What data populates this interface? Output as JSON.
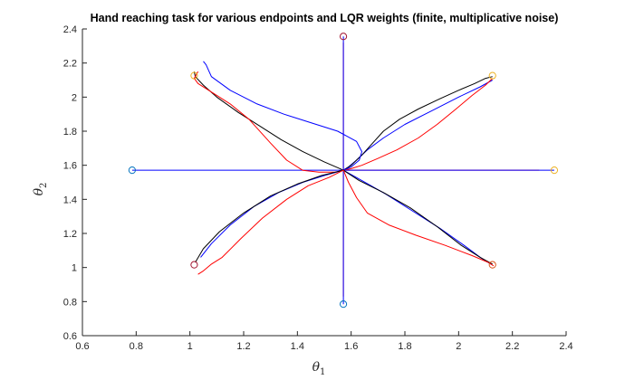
{
  "chart_data": {
    "type": "line",
    "title": "Hand reaching task for various endpoints and LQR weights (finite, multiplicative noise)",
    "xlabel": "θ1",
    "ylabel": "θ2",
    "xlabel_main": "θ",
    "xlabel_sub": "1",
    "ylabel_main": "θ",
    "ylabel_sub": "2",
    "xlim": [
      0.6,
      2.4
    ],
    "ylim": [
      0.6,
      2.4
    ],
    "x_ticks": [
      "0.6",
      "0.8",
      "1",
      "1.2",
      "1.4",
      "1.6",
      "1.8",
      "2",
      "2.2",
      "2.4"
    ],
    "y_ticks": [
      "0.6",
      "0.8",
      "1",
      "1.2",
      "1.4",
      "1.6",
      "1.8",
      "2",
      "2.2",
      "2.4"
    ],
    "grid": false,
    "legend": "none",
    "colors": {
      "blue": "#0000ff",
      "black": "#000000",
      "red": "#ff0000",
      "axis": "#262626"
    },
    "start_point": {
      "x": 1.571,
      "y": 1.571
    },
    "targets": [
      {
        "x": 0.785,
        "y": 1.571,
        "color": "#0072bd"
      },
      {
        "x": 2.356,
        "y": 1.571,
        "color": "#edb120"
      },
      {
        "x": 1.571,
        "y": 0.785,
        "color": "#0072bd"
      },
      {
        "x": 1.571,
        "y": 2.356,
        "color": "#a2142f"
      },
      {
        "x": 2.126,
        "y": 2.126,
        "color": "#edb120"
      },
      {
        "x": 1.016,
        "y": 2.126,
        "color": "#edb120"
      },
      {
        "x": 1.016,
        "y": 1.016,
        "color": "#a2142f"
      },
      {
        "x": 2.126,
        "y": 1.016,
        "color": "#d95319"
      }
    ],
    "series": [
      {
        "color": "#0000ff",
        "x": [
          1.571,
          0.785
        ],
        "y": [
          1.571,
          1.571
        ]
      },
      {
        "color": "#ff0000",
        "x": [
          1.571,
          2.3
        ],
        "y": [
          1.571,
          1.571
        ]
      },
      {
        "color": "#0000ff",
        "x": [
          1.571,
          2.356
        ],
        "y": [
          1.571,
          1.571
        ]
      },
      {
        "color": "#ff0000",
        "x": [
          1.571,
          1.571
        ],
        "y": [
          1.571,
          0.83
        ]
      },
      {
        "color": "#0000ff",
        "x": [
          1.571,
          1.571
        ],
        "y": [
          1.571,
          0.785
        ]
      },
      {
        "color": "#ff0000",
        "x": [
          1.571,
          1.571
        ],
        "y": [
          1.571,
          2.32
        ]
      },
      {
        "color": "#0000ff",
        "x": [
          1.571,
          1.571
        ],
        "y": [
          1.571,
          2.356
        ]
      },
      {
        "color": "#0000ff",
        "x": [
          1.571,
          1.59,
          1.62,
          1.66,
          1.72,
          1.8,
          1.9,
          2.0,
          2.08,
          2.126
        ],
        "y": [
          1.571,
          1.59,
          1.63,
          1.69,
          1.76,
          1.84,
          1.92,
          2.0,
          2.06,
          2.1
        ]
      },
      {
        "color": "#000000",
        "x": [
          1.571,
          1.6,
          1.64,
          1.68,
          1.72,
          1.78,
          1.85,
          1.93,
          2.0,
          2.06,
          2.1,
          2.126
        ],
        "y": [
          1.571,
          1.6,
          1.66,
          1.73,
          1.8,
          1.87,
          1.93,
          1.99,
          2.04,
          2.08,
          2.11,
          2.12
        ]
      },
      {
        "color": "#ff0000",
        "x": [
          1.571,
          1.6,
          1.64,
          1.7,
          1.77,
          1.85,
          1.92,
          1.99,
          2.05,
          2.1,
          2.126
        ],
        "y": [
          1.571,
          1.58,
          1.6,
          1.64,
          1.69,
          1.76,
          1.84,
          1.93,
          2.01,
          2.07,
          2.11
        ]
      },
      {
        "color": "#0000ff",
        "x": [
          1.571,
          1.6,
          1.63,
          1.64,
          1.62,
          1.55,
          1.45,
          1.35,
          1.25,
          1.15,
          1.08,
          1.06,
          1.05
        ],
        "y": [
          1.571,
          1.59,
          1.63,
          1.68,
          1.74,
          1.8,
          1.85,
          1.9,
          1.96,
          2.04,
          2.12,
          2.19,
          2.21
        ]
      },
      {
        "color": "#000000",
        "x": [
          1.571,
          1.5,
          1.42,
          1.34,
          1.26,
          1.18,
          1.1,
          1.05,
          1.02,
          1.016
        ],
        "y": [
          1.571,
          1.62,
          1.68,
          1.75,
          1.83,
          1.91,
          2.0,
          2.07,
          2.12,
          2.15
        ]
      },
      {
        "color": "#ff0000",
        "x": [
          1.571,
          1.54,
          1.48,
          1.42,
          1.36,
          1.3,
          1.22,
          1.15,
          1.08,
          1.03,
          1.016,
          1.03
        ],
        "y": [
          1.571,
          1.56,
          1.56,
          1.57,
          1.63,
          1.73,
          1.87,
          1.96,
          2.03,
          2.08,
          2.11,
          2.15
        ]
      },
      {
        "color": "#0000ff",
        "x": [
          1.571,
          1.5,
          1.42,
          1.33,
          1.24,
          1.15,
          1.08,
          1.04
        ],
        "y": [
          1.571,
          1.54,
          1.5,
          1.44,
          1.36,
          1.25,
          1.14,
          1.06
        ]
      },
      {
        "color": "#000000",
        "x": [
          1.571,
          1.49,
          1.4,
          1.3,
          1.2,
          1.11,
          1.05,
          1.02
        ],
        "y": [
          1.571,
          1.54,
          1.49,
          1.42,
          1.32,
          1.21,
          1.11,
          1.03
        ]
      },
      {
        "color": "#ff0000",
        "x": [
          1.571,
          1.52,
          1.44,
          1.36,
          1.27,
          1.19,
          1.12,
          1.08,
          1.05,
          1.03
        ],
        "y": [
          1.571,
          1.53,
          1.48,
          1.4,
          1.29,
          1.17,
          1.06,
          1.02,
          0.98,
          0.96
        ]
      },
      {
        "color": "#0000ff",
        "x": [
          1.571,
          1.64,
          1.73,
          1.83,
          1.93,
          2.02,
          2.08,
          2.12
        ],
        "y": [
          1.571,
          1.51,
          1.43,
          1.33,
          1.23,
          1.13,
          1.06,
          1.02
        ]
      },
      {
        "color": "#000000",
        "x": [
          1.571,
          1.63,
          1.72,
          1.82,
          1.92,
          2.01,
          2.08,
          2.126
        ],
        "y": [
          1.571,
          1.51,
          1.44,
          1.35,
          1.24,
          1.13,
          1.06,
          1.02
        ]
      },
      {
        "color": "#ff0000",
        "x": [
          1.571,
          1.59,
          1.62,
          1.66,
          1.74,
          1.84,
          1.95,
          2.05,
          2.11,
          2.13
        ],
        "y": [
          1.571,
          1.5,
          1.41,
          1.32,
          1.25,
          1.19,
          1.13,
          1.07,
          1.03,
          1.01
        ]
      }
    ]
  }
}
